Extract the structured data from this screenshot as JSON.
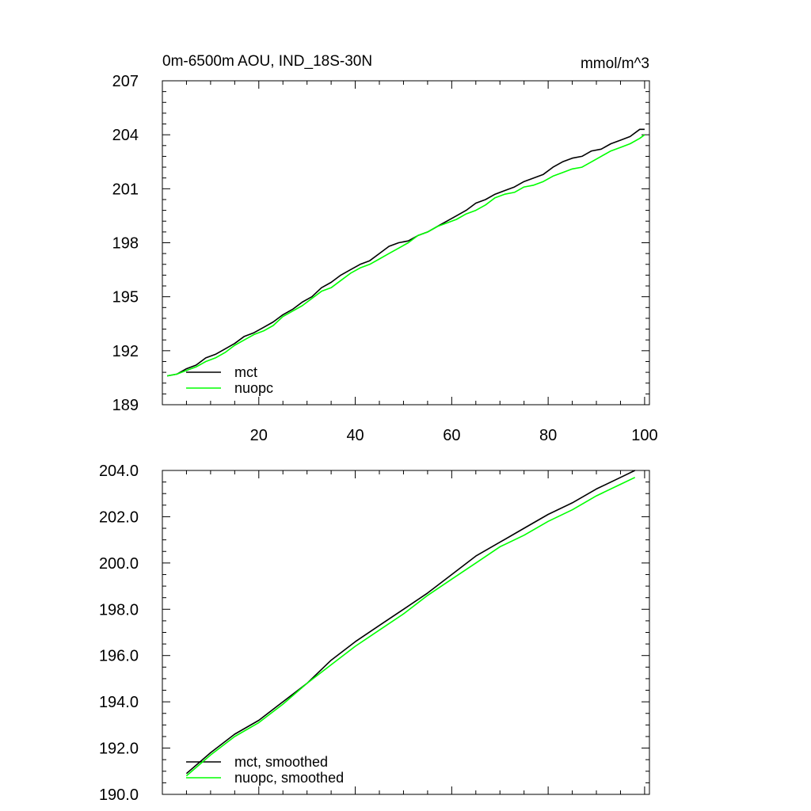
{
  "chart_data": [
    {
      "type": "line",
      "title": "0m-6500m AOU, IND_18S-30N",
      "units": "mmol/m^3",
      "xlabel": "",
      "ylabel": "",
      "xlim": [
        0,
        101
      ],
      "ylim": [
        189,
        207
      ],
      "xticks": [
        20,
        40,
        60,
        80,
        100
      ],
      "xtick_labels": [
        "20",
        "40",
        "60",
        "80",
        "100"
      ],
      "yticks": [
        189,
        192,
        195,
        198,
        201,
        204,
        207
      ],
      "ytick_labels": [
        "189",
        "192",
        "195",
        "198",
        "201",
        "204",
        "207"
      ],
      "legend_position": "bottom-left",
      "series": [
        {
          "name": "mct",
          "color": "#000000",
          "x": [
            1,
            3,
            5,
            7,
            9,
            11,
            13,
            15,
            17,
            19,
            21,
            23,
            25,
            27,
            29,
            31,
            33,
            35,
            37,
            39,
            41,
            43,
            45,
            47,
            49,
            51,
            53,
            55,
            57,
            59,
            61,
            63,
            65,
            67,
            69,
            71,
            73,
            75,
            77,
            79,
            81,
            83,
            85,
            87,
            89,
            91,
            93,
            95,
            97,
            99,
            100
          ],
          "values": [
            190.6,
            190.7,
            191.0,
            191.2,
            191.6,
            191.8,
            192.1,
            192.4,
            192.8,
            193.0,
            193.3,
            193.6,
            194.0,
            194.3,
            194.7,
            195.0,
            195.5,
            195.8,
            196.2,
            196.5,
            196.8,
            197.0,
            197.4,
            197.8,
            198.0,
            198.1,
            198.4,
            198.6,
            198.9,
            199.2,
            199.5,
            199.8,
            200.2,
            200.4,
            200.7,
            200.9,
            201.1,
            201.4,
            201.6,
            201.8,
            202.2,
            202.5,
            202.7,
            202.8,
            203.1,
            203.2,
            203.5,
            203.7,
            203.9,
            204.3,
            204.3
          ]
        },
        {
          "name": "nuopc",
          "color": "#00ff00",
          "x": [
            1,
            3,
            5,
            7,
            9,
            11,
            13,
            15,
            17,
            19,
            21,
            23,
            25,
            27,
            29,
            31,
            33,
            35,
            37,
            39,
            41,
            43,
            45,
            47,
            49,
            51,
            53,
            55,
            57,
            59,
            61,
            63,
            65,
            67,
            69,
            71,
            73,
            75,
            77,
            79,
            81,
            83,
            85,
            87,
            89,
            91,
            93,
            95,
            97,
            99,
            100
          ],
          "values": [
            190.6,
            190.7,
            190.9,
            191.1,
            191.4,
            191.6,
            191.9,
            192.3,
            192.6,
            192.9,
            193.1,
            193.4,
            193.9,
            194.2,
            194.5,
            194.9,
            195.3,
            195.5,
            195.9,
            196.3,
            196.6,
            196.8,
            197.1,
            197.4,
            197.7,
            198.0,
            198.4,
            198.6,
            198.9,
            199.1,
            199.3,
            199.6,
            199.8,
            200.1,
            200.5,
            200.7,
            200.8,
            201.1,
            201.2,
            201.4,
            201.7,
            201.9,
            202.1,
            202.2,
            202.5,
            202.8,
            203.1,
            203.3,
            203.5,
            203.8,
            204.0
          ]
        }
      ]
    },
    {
      "type": "line",
      "title": "",
      "xlabel": "",
      "ylabel": "",
      "xlim": [
        0,
        101
      ],
      "ylim": [
        190,
        204
      ],
      "xticks": [
        20,
        40,
        60,
        80,
        100
      ],
      "xtick_labels": [],
      "yticks": [
        190,
        192,
        194,
        196,
        198,
        200,
        202,
        204
      ],
      "ytick_labels": [
        "190.0",
        "192.0",
        "194.0",
        "196.0",
        "198.0",
        "200.0",
        "202.0",
        "204.0"
      ],
      "legend_position": "bottom-left",
      "series": [
        {
          "name": "mct, smoothed",
          "color": "#000000",
          "x": [
            5,
            10,
            15,
            20,
            25,
            30,
            35,
            40,
            45,
            50,
            55,
            60,
            65,
            70,
            75,
            80,
            85,
            90,
            95,
            98
          ],
          "values": [
            190.9,
            191.8,
            192.6,
            193.2,
            194.0,
            194.8,
            195.8,
            196.6,
            197.3,
            198.0,
            198.7,
            199.5,
            200.3,
            200.9,
            201.5,
            202.1,
            202.6,
            203.2,
            203.7,
            204.0
          ]
        },
        {
          "name": "nuopc, smoothed",
          "color": "#00ff00",
          "x": [
            5,
            10,
            15,
            20,
            25,
            30,
            35,
            40,
            45,
            50,
            55,
            60,
            65,
            70,
            75,
            80,
            85,
            90,
            95,
            98
          ],
          "values": [
            190.8,
            191.7,
            192.5,
            193.1,
            193.9,
            194.8,
            195.6,
            196.4,
            197.1,
            197.8,
            198.6,
            199.3,
            200.0,
            200.7,
            201.2,
            201.8,
            202.3,
            202.9,
            203.4,
            203.7
          ]
        }
      ]
    }
  ]
}
